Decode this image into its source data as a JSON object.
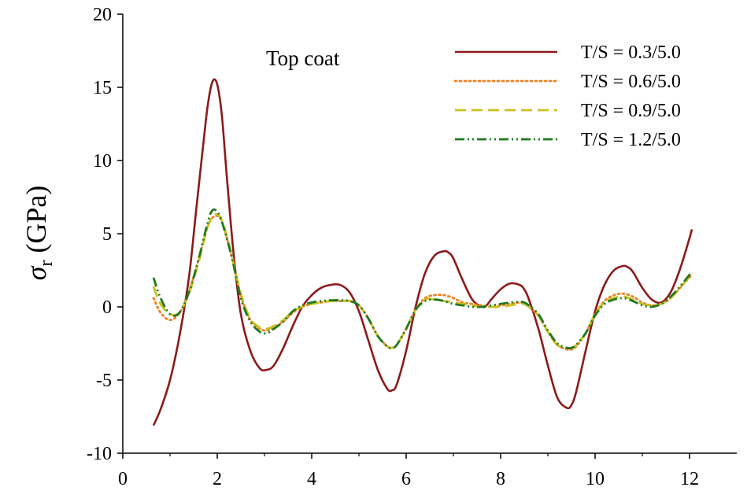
{
  "chart_data": {
    "type": "line",
    "title": "",
    "xlabel": "",
    "ylabel": {
      "symbol": "σ",
      "subscript": "r",
      "unit": " (GPa)"
    },
    "annotation": "Top coat",
    "xlim": [
      0,
      13
    ],
    "ylim": [
      -10,
      20
    ],
    "xticks": [
      0,
      2,
      4,
      6,
      8,
      10,
      12
    ],
    "yticks": [
      -10,
      -5,
      0,
      5,
      10,
      15,
      20
    ],
    "xtick_labels": [
      "0",
      "2",
      "4",
      "6",
      "8",
      "10",
      "12"
    ],
    "ytick_labels": [
      "-10",
      "-5",
      "0",
      "5",
      "10",
      "15",
      "20"
    ],
    "grid": false,
    "legend_position": "top-right",
    "series": [
      {
        "name": "T/S = 0.3/5.0",
        "color": "#8B1A1A",
        "style": "solid",
        "x": [
          0.65,
          0.8,
          1.0,
          1.2,
          1.4,
          1.55,
          1.7,
          1.8,
          1.9,
          2.0,
          2.1,
          2.2,
          2.35,
          2.5,
          2.7,
          2.9,
          3.05,
          3.2,
          3.4,
          3.6,
          3.8,
          4.0,
          4.2,
          4.4,
          4.6,
          4.8,
          5.0,
          5.2,
          5.4,
          5.6,
          5.7,
          5.8,
          6.0,
          6.2,
          6.4,
          6.6,
          6.8,
          6.9,
          7.0,
          7.2,
          7.4,
          7.6,
          7.7,
          7.8,
          8.0,
          8.2,
          8.4,
          8.5,
          8.6,
          8.8,
          9.0,
          9.2,
          9.4,
          9.5,
          9.6,
          9.8,
          10.0,
          10.2,
          10.4,
          10.6,
          10.7,
          10.8,
          11.0,
          11.2,
          11.4,
          11.6,
          11.8,
          12.0,
          12.05
        ],
        "values": [
          -8.1,
          -7.0,
          -5.0,
          -2.0,
          2.0,
          6.5,
          11.0,
          13.8,
          15.4,
          15.2,
          13.0,
          9.0,
          3.5,
          -0.5,
          -3.0,
          -4.2,
          -4.3,
          -4.0,
          -2.8,
          -1.3,
          0.0,
          0.8,
          1.3,
          1.5,
          1.5,
          1.0,
          -0.3,
          -2.3,
          -4.3,
          -5.6,
          -5.7,
          -5.3,
          -3.0,
          0.0,
          2.3,
          3.5,
          3.8,
          3.7,
          3.3,
          1.8,
          0.5,
          0.0,
          0.1,
          0.5,
          1.2,
          1.6,
          1.5,
          1.2,
          0.5,
          -1.5,
          -4.0,
          -6.2,
          -6.9,
          -6.7,
          -5.8,
          -3.0,
          -0.3,
          1.5,
          2.5,
          2.8,
          2.7,
          2.4,
          1.3,
          0.5,
          0.3,
          1.0,
          2.6,
          4.7,
          5.3
        ]
      },
      {
        "name": "T/S = 0.6/5.0",
        "color": "#F08020",
        "style": "dotted",
        "x": [
          0.65,
          0.8,
          1.0,
          1.2,
          1.4,
          1.6,
          1.8,
          1.95,
          2.1,
          2.3,
          2.5,
          2.7,
          2.9,
          3.05,
          3.2,
          3.4,
          3.6,
          3.8,
          4.0,
          4.2,
          4.4,
          4.6,
          4.8,
          5.0,
          5.2,
          5.4,
          5.6,
          5.7,
          5.8,
          6.0,
          6.2,
          6.4,
          6.6,
          6.8,
          7.0,
          7.2,
          7.4,
          7.6,
          7.8,
          8.0,
          8.2,
          8.4,
          8.5,
          8.6,
          8.8,
          9.0,
          9.2,
          9.4,
          9.5,
          9.6,
          9.8,
          10.0,
          10.2,
          10.4,
          10.6,
          10.8,
          11.0,
          11.2,
          11.4,
          11.6,
          11.8,
          12.05
        ],
        "values": [
          0.6,
          -0.4,
          -0.9,
          -0.4,
          1.0,
          3.2,
          5.5,
          6.2,
          5.8,
          3.5,
          0.8,
          -0.9,
          -1.5,
          -1.6,
          -1.4,
          -1.0,
          -0.4,
          0.0,
          0.2,
          0.3,
          0.4,
          0.4,
          0.4,
          0.1,
          -0.8,
          -2.0,
          -2.7,
          -2.8,
          -2.6,
          -1.5,
          -0.2,
          0.6,
          0.8,
          0.8,
          0.6,
          0.3,
          0.2,
          0.1,
          0.0,
          0.1,
          0.2,
          0.3,
          0.2,
          0.0,
          -0.6,
          -1.7,
          -2.6,
          -2.9,
          -2.9,
          -2.7,
          -1.8,
          -0.5,
          0.4,
          0.8,
          0.9,
          0.7,
          0.3,
          0.1,
          0.2,
          0.6,
          1.3,
          2.2
        ]
      },
      {
        "name": "T/S = 0.9/5.0",
        "color": "#C8C020",
        "style": "dashed",
        "x": [
          0.65,
          0.8,
          1.0,
          1.2,
          1.4,
          1.6,
          1.8,
          1.95,
          2.1,
          2.3,
          2.5,
          2.7,
          2.9,
          3.05,
          3.2,
          3.4,
          3.6,
          3.8,
          4.0,
          4.2,
          4.4,
          4.6,
          4.8,
          5.0,
          5.2,
          5.4,
          5.6,
          5.7,
          5.8,
          6.0,
          6.2,
          6.4,
          6.6,
          6.8,
          7.0,
          7.2,
          7.4,
          7.6,
          7.8,
          8.0,
          8.2,
          8.4,
          8.5,
          8.6,
          8.8,
          9.0,
          9.2,
          9.4,
          9.5,
          9.6,
          9.8,
          10.0,
          10.2,
          10.4,
          10.6,
          10.8,
          11.0,
          11.2,
          11.4,
          11.6,
          11.8,
          12.05
        ],
        "values": [
          1.4,
          0.2,
          -0.5,
          -0.4,
          0.9,
          3.0,
          5.5,
          6.3,
          5.9,
          3.6,
          0.9,
          -0.8,
          -1.4,
          -1.5,
          -1.3,
          -0.9,
          -0.3,
          0.0,
          0.2,
          0.3,
          0.4,
          0.4,
          0.4,
          0.1,
          -0.8,
          -2.0,
          -2.7,
          -2.8,
          -2.6,
          -1.5,
          -0.2,
          0.5,
          0.5,
          0.4,
          0.3,
          0.2,
          0.1,
          0.0,
          0.0,
          0.0,
          0.1,
          0.2,
          0.2,
          0.0,
          -0.6,
          -1.7,
          -2.6,
          -2.8,
          -2.8,
          -2.6,
          -1.8,
          -0.5,
          0.3,
          0.6,
          0.7,
          0.5,
          0.2,
          0.1,
          0.2,
          0.6,
          1.3,
          2.3
        ]
      },
      {
        "name": "T/S = 1.2/5.0",
        "color": "#1E7A1E",
        "style": "dashdotdot",
        "x": [
          0.65,
          0.8,
          1.0,
          1.2,
          1.4,
          1.6,
          1.8,
          1.9,
          2.0,
          2.1,
          2.3,
          2.5,
          2.7,
          2.9,
          3.05,
          3.2,
          3.4,
          3.6,
          3.8,
          4.0,
          4.2,
          4.4,
          4.6,
          4.8,
          5.0,
          5.2,
          5.4,
          5.6,
          5.7,
          5.8,
          6.0,
          6.2,
          6.4,
          6.6,
          6.8,
          7.0,
          7.2,
          7.4,
          7.6,
          7.8,
          8.0,
          8.2,
          8.4,
          8.5,
          8.6,
          8.8,
          9.0,
          9.2,
          9.4,
          9.5,
          9.6,
          9.8,
          10.0,
          10.2,
          10.4,
          10.6,
          10.8,
          11.0,
          11.2,
          11.4,
          11.6,
          11.8,
          12.05
        ],
        "values": [
          2.0,
          0.6,
          -0.5,
          -0.4,
          1.0,
          3.2,
          5.8,
          6.6,
          6.5,
          5.8,
          3.5,
          0.6,
          -1.0,
          -1.7,
          -1.8,
          -1.5,
          -1.0,
          -0.3,
          0.1,
          0.3,
          0.4,
          0.45,
          0.45,
          0.4,
          0.1,
          -0.8,
          -2.0,
          -2.7,
          -2.8,
          -2.6,
          -1.5,
          -0.2,
          0.4,
          0.5,
          0.4,
          0.2,
          0.1,
          0.0,
          0.0,
          0.1,
          0.2,
          0.3,
          0.35,
          0.3,
          0.1,
          -0.5,
          -1.6,
          -2.5,
          -2.8,
          -2.8,
          -2.6,
          -1.8,
          -0.6,
          0.2,
          0.5,
          0.6,
          0.4,
          0.1,
          0.0,
          0.2,
          0.7,
          1.4,
          2.4
        ]
      }
    ]
  }
}
